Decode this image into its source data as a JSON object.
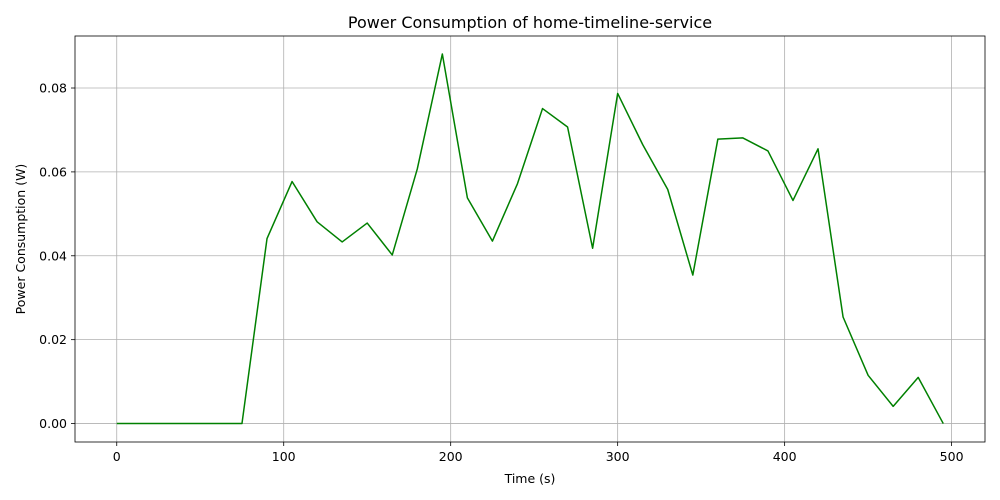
{
  "chart_data": {
    "type": "line",
    "title": "Power Consumption of home-timeline-service",
    "xlabel": "Time (s)",
    "ylabel": "Power Consumption (W)",
    "xlim": [
      -25,
      520
    ],
    "ylim": [
      -0.0044,
      0.0924
    ],
    "xticks": [
      0,
      100,
      200,
      300,
      400,
      500
    ],
    "xtick_labels": [
      "0",
      "100",
      "200",
      "300",
      "400",
      "500"
    ],
    "yticks": [
      0.0,
      0.02,
      0.04,
      0.06,
      0.08
    ],
    "ytick_labels": [
      "0.00",
      "0.02",
      "0.04",
      "0.06",
      "0.08"
    ],
    "grid": true,
    "series": [
      {
        "color": "#008000",
        "x": [
          0,
          15,
          30,
          45,
          60,
          75,
          90,
          105,
          120,
          135,
          150,
          165,
          180,
          195,
          210,
          225,
          240,
          255,
          270,
          285,
          300,
          315,
          330,
          345,
          360,
          375,
          390,
          405,
          420,
          435,
          450,
          465,
          480,
          495
        ],
        "y": [
          0.0,
          0.0,
          0.0,
          0.0,
          0.0,
          0.0,
          0.0441,
          0.0577,
          0.0481,
          0.0433,
          0.0478,
          0.0402,
          0.0607,
          0.0881,
          0.0538,
          0.0435,
          0.0572,
          0.0751,
          0.0707,
          0.0418,
          0.0787,
          0.0665,
          0.0558,
          0.0354,
          0.0678,
          0.0681,
          0.065,
          0.0532,
          0.0655,
          0.0254,
          0.0115,
          0.0041,
          0.011,
          0.0
        ]
      }
    ]
  }
}
